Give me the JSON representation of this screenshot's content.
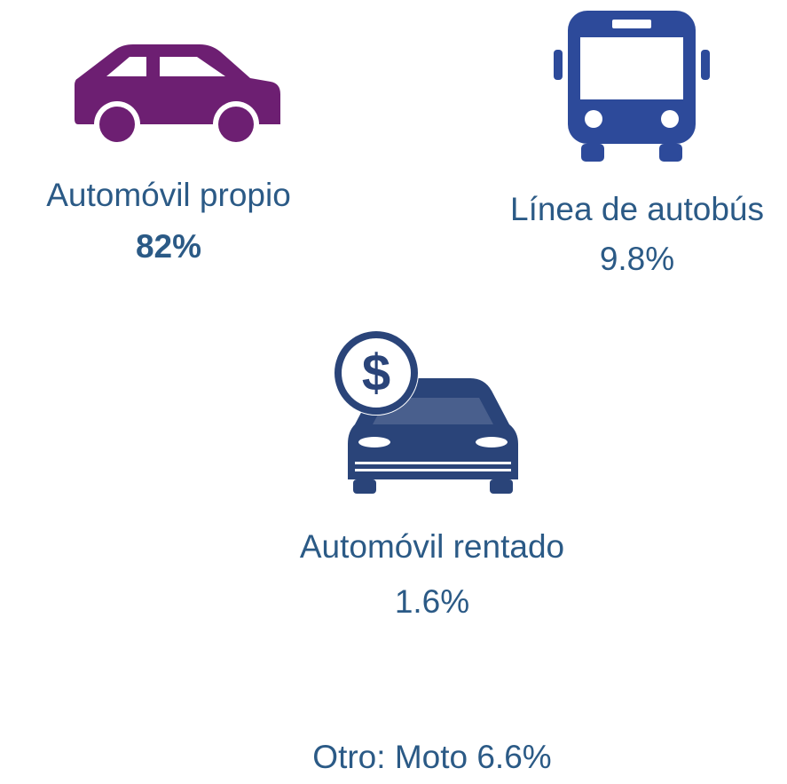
{
  "items": [
    {
      "label": "Automóvil propio",
      "value": "82%"
    },
    {
      "label": "Línea de autobús",
      "value": "9.8%"
    },
    {
      "label": "Automóvil rentado",
      "value": "1.6%"
    }
  ],
  "other": "Otro: Moto 6.6%"
}
